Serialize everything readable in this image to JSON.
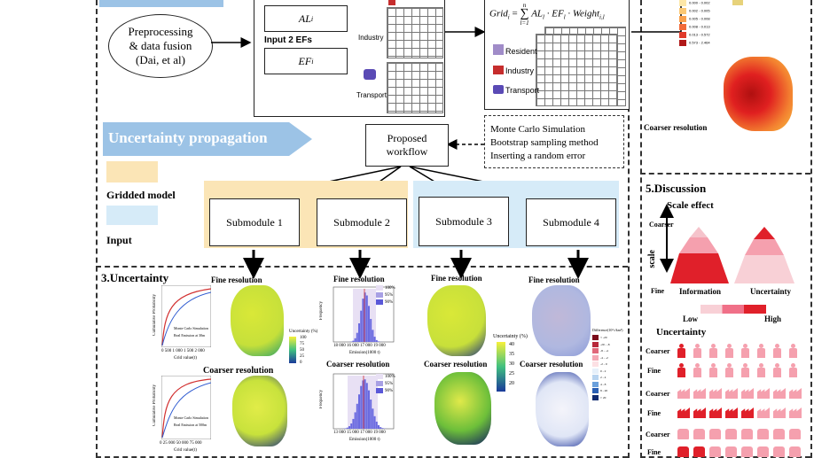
{
  "colors": {
    "banner_blue": "#9cc3e6",
    "gridded_model_yellow": "#fbe5b6",
    "input_blue": "#d6ebf8",
    "pyramid_red": "#e0202a",
    "pyramid_pink": "#f5a0ae",
    "map_yellow": "#d9e838",
    "map_red": "#d23a1a"
  },
  "top": {
    "preprocessing": "Preprocessing\n& data fusion\n(Dai, et al)",
    "al_label": "AL",
    "al_sub": "i",
    "input2": "Input 2 EFs",
    "ef_label": "EF",
    "ef_sub": "i",
    "industry": "Industry",
    "transport": "Transport",
    "formula_left": "Grid",
    "formula_sub": "i",
    "formula_eq": "=",
    "formula_sum_top": "n",
    "formula_sum_bottom": "l=1",
    "formula_right": "AL",
    "formula_right_sub": "l",
    "formula_dot1": "· EF",
    "formula_ef_sub": "l",
    "formula_dot2": "· Weight",
    "formula_weight_sub": "i,l",
    "resident": "Resident",
    "industry2": "Industry",
    "transport2": "Transport",
    "legend_rows": [
      "0.000 - 0.002",
      "0.002 - 0.005",
      "0.005 - 0.008",
      "0.008 - 0.013",
      "0.013 - 0.572",
      "0.573 - 2.464"
    ],
    "coarser_resolution": "Coarser resolution"
  },
  "uncertainty_propagation": {
    "banner": "Uncertainty propagation",
    "gridded_model": "Gridded model",
    "input": "Input",
    "proposed_workflow": "Proposed\nworkflow",
    "monte_carlo": "Monte Carlo Simulation",
    "bootstrap": "Bootstrap sampling method",
    "random_error": "Inserting a random error",
    "submodules": [
      "Submodule 1",
      "Submodule 2",
      "Submodule 3",
      "Submodule 4"
    ]
  },
  "uncertainty": {
    "title": "3.Uncertainty",
    "fine_resolution": "Fine resolution",
    "coarser_resolution": "Coarser resolution",
    "cum_prob": "Cumulative Probability",
    "mc_sim": "Monte Carlo Simulation",
    "real_30": "Real Emission at 30m",
    "real_500": "Real Emission at 500m",
    "grid_value": "Grid value(t)",
    "ticks_fine": "0   500   1 000 1 500 2 000",
    "ticks_coarse": "0     25 000  50 000  75 000",
    "uncertainty_pct": "Uncertainty (%)",
    "ticks_unc1": [
      "100",
      "75",
      "50",
      "25",
      "0"
    ],
    "ticks_unc2": [
      "40",
      "35",
      "30",
      "25",
      "20"
    ],
    "frequency": "Frequency",
    "emission": "Emission(1000 t)",
    "hist_ticks_fine": "18 000   16 000  17 000 19 000",
    "hist_ticks_coarse": "13 000 15 000 17 000 19 000",
    "legend_pct": [
      "100%",
      "95%",
      "90%"
    ],
    "difference": "Difference(10³ t/km²)",
    "diff_ticks": [
      "< -20",
      "-20 - -8",
      "-8 - -4",
      "-4 - -2",
      "-2 - 0",
      "0 - 2",
      "2 - 4",
      "4 - 8",
      "8 - 20",
      "> 20"
    ]
  },
  "discussion": {
    "title": "5.Discussion",
    "scale_effect": "Scale effect",
    "coarser": "Coarser",
    "scale": "scale",
    "fine": "Fine",
    "information": "Information",
    "uncertainty_label": "Uncertainty",
    "low": "Low",
    "high": "High",
    "uncertainty_title": "Uncertainty",
    "rows": [
      "Coarser",
      "Fine",
      "Coarser",
      "Fine",
      "Coarser",
      "Fine"
    ]
  }
}
